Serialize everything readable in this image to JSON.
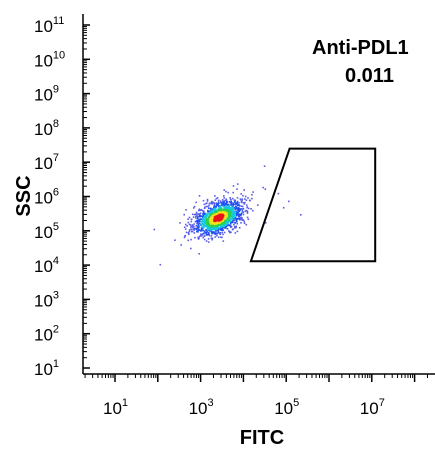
{
  "chart_data": {
    "type": "scatter",
    "title": "",
    "xlabel": "FITC",
    "ylabel": "SSC",
    "xscale": "log",
    "yscale": "log",
    "xlim": [
      1,
      100000000
    ],
    "ylim": [
      10,
      100000000000
    ],
    "x_ticks": [
      {
        "value": 10,
        "base": "10",
        "exp": "1"
      },
      {
        "value": 1000,
        "base": "10",
        "exp": "3"
      },
      {
        "value": 100000,
        "base": "10",
        "exp": "5"
      },
      {
        "value": 10000000,
        "base": "10",
        "exp": "7"
      }
    ],
    "y_ticks": [
      {
        "value": 10,
        "base": "10",
        "exp": "1"
      },
      {
        "value": 100,
        "base": "10",
        "exp": "2"
      },
      {
        "value": 1000,
        "base": "10",
        "exp": "3"
      },
      {
        "value": 10000,
        "base": "10",
        "exp": "4"
      },
      {
        "value": 100000,
        "base": "10",
        "exp": "5"
      },
      {
        "value": 1000000,
        "base": "10",
        "exp": "6"
      },
      {
        "value": 10000000,
        "base": "10",
        "exp": "7"
      },
      {
        "value": 100000000,
        "base": "10",
        "exp": "8"
      },
      {
        "value": 1000000000,
        "base": "10",
        "exp": "9"
      },
      {
        "value": 10000000000,
        "base": "10",
        "exp": "10"
      },
      {
        "value": 100000000000,
        "base": "10",
        "exp": "11"
      }
    ],
    "population": {
      "center": [
        2500,
        250000
      ],
      "colormap": "density (blue → cyan → green → yellow → red)"
    },
    "gate": {
      "label": "Anti-PDL1",
      "value": "0.011",
      "polygon": [
        [
          120000,
          25000000
        ],
        [
          12000000,
          25000000
        ],
        [
          12000000,
          13000
        ],
        [
          15000,
          13000
        ]
      ]
    },
    "grid": false,
    "legend": "none"
  }
}
